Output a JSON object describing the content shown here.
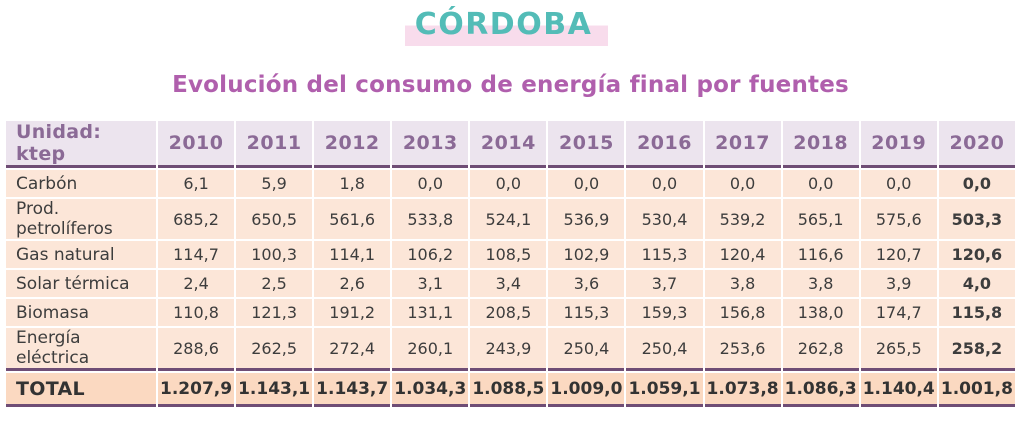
{
  "title": "CÓRDOBA",
  "subtitle": "Evolución del consumo de energía final por fuentes",
  "colors": {
    "title_teal": "#53bcb7",
    "title_highlight_pink": "#f8dcec",
    "subtitle_purple": "#b05fad",
    "header_bg": "#ece4ee",
    "header_text": "#8b6a96",
    "divider_purple": "#6f4d75",
    "row_bg_peach": "#fce6d8",
    "total_bg_peach": "#fbd9c1",
    "cell_text": "#3d3d3d"
  },
  "table": {
    "unit_label": "Unidad: ktep",
    "years": [
      "2010",
      "2011",
      "2012",
      "2013",
      "2014",
      "2015",
      "2016",
      "2017",
      "2018",
      "2019",
      "2020"
    ],
    "rows": [
      {
        "label": "Carbón",
        "values": [
          "6,1",
          "5,9",
          "1,8",
          "0,0",
          "0,0",
          "0,0",
          "0,0",
          "0,0",
          "0,0",
          "0,0",
          "0,0"
        ]
      },
      {
        "label": "Prod. petrolíferos",
        "values": [
          "685,2",
          "650,5",
          "561,6",
          "533,8",
          "524,1",
          "536,9",
          "530,4",
          "539,2",
          "565,1",
          "575,6",
          "503,3"
        ]
      },
      {
        "label": "Gas natural",
        "values": [
          "114,7",
          "100,3",
          "114,1",
          "106,2",
          "108,5",
          "102,9",
          "115,3",
          "120,4",
          "116,6",
          "120,7",
          "120,6"
        ]
      },
      {
        "label": "Solar térmica",
        "values": [
          "2,4",
          "2,5",
          "2,6",
          "3,1",
          "3,4",
          "3,6",
          "3,7",
          "3,8",
          "3,8",
          "3,9",
          "4,0"
        ]
      },
      {
        "label": "Biomasa",
        "values": [
          "110,8",
          "121,3",
          "191,2",
          "131,1",
          "208,5",
          "115,3",
          "159,3",
          "156,8",
          "138,0",
          "174,7",
          "115,8"
        ]
      },
      {
        "label": "Energía eléctrica",
        "values": [
          "288,6",
          "262,5",
          "272,4",
          "260,1",
          "243,9",
          "250,4",
          "250,4",
          "253,6",
          "262,8",
          "265,5",
          "258,2"
        ]
      }
    ],
    "total": {
      "label": "TOTAL",
      "values": [
        "1.207,9",
        "1.143,1",
        "1.143,7",
        "1.034,3",
        "1.088,5",
        "1.009,0",
        "1.059,1",
        "1.073,8",
        "1.086,3",
        "1.140,4",
        "1.001,8"
      ]
    }
  },
  "chart_data": {
    "type": "table",
    "title": "CÓRDOBA — Evolución del consumo de energía final por fuentes",
    "unit": "ktep",
    "categories": [
      2010,
      2011,
      2012,
      2013,
      2014,
      2015,
      2016,
      2017,
      2018,
      2019,
      2020
    ],
    "series": [
      {
        "name": "Carbón",
        "values": [
          6.1,
          5.9,
          1.8,
          0.0,
          0.0,
          0.0,
          0.0,
          0.0,
          0.0,
          0.0,
          0.0
        ]
      },
      {
        "name": "Prod. petrolíferos",
        "values": [
          685.2,
          650.5,
          561.6,
          533.8,
          524.1,
          536.9,
          530.4,
          539.2,
          565.1,
          575.6,
          503.3
        ]
      },
      {
        "name": "Gas natural",
        "values": [
          114.7,
          100.3,
          114.1,
          106.2,
          108.5,
          102.9,
          115.3,
          120.4,
          116.6,
          120.7,
          120.6
        ]
      },
      {
        "name": "Solar térmica",
        "values": [
          2.4,
          2.5,
          2.6,
          3.1,
          3.4,
          3.6,
          3.7,
          3.8,
          3.8,
          3.9,
          4.0
        ]
      },
      {
        "name": "Biomasa",
        "values": [
          110.8,
          121.3,
          191.2,
          131.1,
          208.5,
          115.3,
          159.3,
          156.8,
          138.0,
          174.7,
          115.8
        ]
      },
      {
        "name": "Energía eléctrica",
        "values": [
          288.6,
          262.5,
          272.4,
          260.1,
          243.9,
          250.4,
          250.4,
          253.6,
          262.8,
          265.5,
          258.2
        ]
      },
      {
        "name": "TOTAL",
        "values": [
          1207.9,
          1143.1,
          1143.7,
          1034.3,
          1088.5,
          1009.0,
          1059.1,
          1073.8,
          1086.3,
          1140.4,
          1001.8
        ]
      }
    ]
  }
}
